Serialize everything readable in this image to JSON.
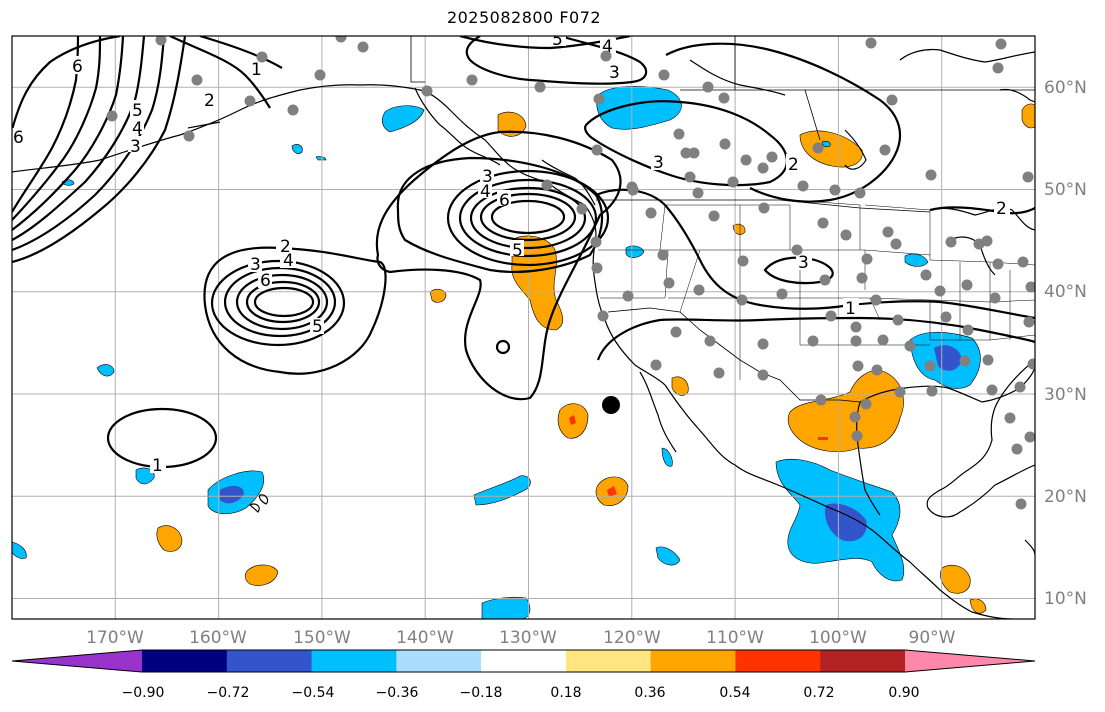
{
  "title": "2025082800 F072",
  "map": {
    "projection": "PlateCarree",
    "lon_range": [
      -180,
      -80
    ],
    "lat_range": [
      8,
      65
    ],
    "lon_ticks": [
      "170°W",
      "160°W",
      "150°W",
      "140°W",
      "130°W",
      "120°W",
      "110°W",
      "100°W",
      "90°W"
    ],
    "lat_ticks": [
      "10°N",
      "20°N",
      "30°N",
      "40°N",
      "50°N",
      "60°N"
    ],
    "contour_labels": [
      "1",
      "2",
      "3",
      "4",
      "5",
      "6"
    ]
  },
  "colorbar": {
    "ticks": [
      "−0.90",
      "−0.72",
      "−0.54",
      "−0.36",
      "−0.18",
      "0.18",
      "0.36",
      "0.54",
      "0.72",
      "0.90"
    ],
    "colors": [
      "#9933cc",
      "#000080",
      "#3355cc",
      "#00bfff",
      "#aaddff",
      "#ffffff",
      "#ffe680",
      "#ffa500",
      "#ff3300",
      "#b22222",
      "#ff88aa"
    ]
  },
  "colors": {
    "grid": "#b0b0b0",
    "coast": "#000000",
    "station": "#808080",
    "contour": "#000000"
  }
}
